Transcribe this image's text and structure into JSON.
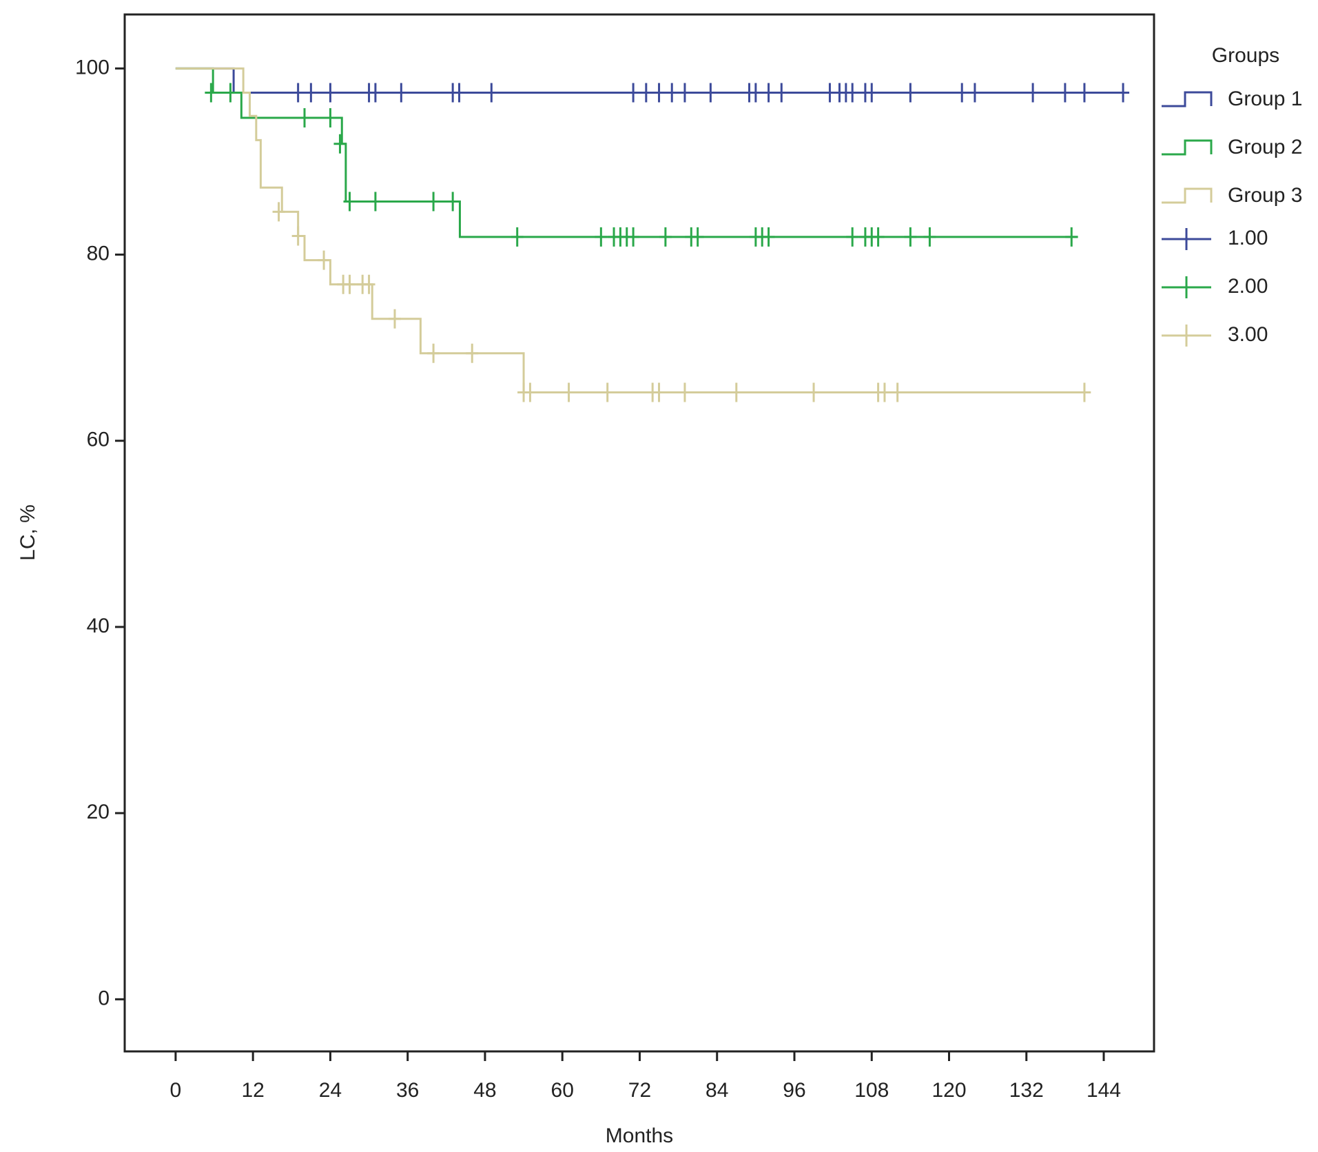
{
  "chart_data": {
    "type": "survival",
    "xlabel": "Months",
    "ylabel": "LC, %",
    "legend_title": "Groups",
    "legend": "right",
    "xlim": [
      -7.9,
      151.8
    ],
    "ylim": [
      -5.6,
      105.8
    ],
    "xticks": [
      0,
      12,
      24,
      36,
      48,
      60,
      72,
      84,
      96,
      108,
      120,
      132,
      144
    ],
    "yticks": [
      0,
      20,
      40,
      60,
      80,
      100
    ],
    "series": [
      {
        "name": "Group 1",
        "color": "#3c4a9a",
        "style": "step",
        "x": [
          0,
          9,
          147.2
        ],
        "values": [
          100,
          97.4,
          97.4
        ]
      },
      {
        "name": "Group 2",
        "color": "#2aa84a",
        "style": "step",
        "x": [
          0,
          5.8,
          10.2,
          25.8,
          26.4,
          44.1,
          140
        ],
        "values": [
          100,
          97.4,
          94.7,
          91.9,
          85.7,
          81.9,
          81.9
        ]
      },
      {
        "name": "Group 3",
        "color": "#d4cc9a",
        "style": "step",
        "x": [
          0,
          10.5,
          11.5,
          12.5,
          13.2,
          16.5,
          19,
          20,
          24,
          30.5,
          38,
          54,
          142
        ],
        "values": [
          100,
          97.4,
          94.9,
          92.3,
          87.2,
          84.6,
          82.0,
          79.4,
          76.8,
          73.1,
          69.4,
          65.2,
          65.2
        ]
      },
      {
        "name": "1.00",
        "color": "#3c4a9a",
        "style": "censor",
        "x": [
          19,
          21,
          24,
          30,
          31,
          35,
          43,
          44,
          49,
          71,
          73,
          75,
          77,
          79,
          83,
          89,
          90,
          92,
          94,
          101.5,
          103,
          104,
          105,
          107,
          108,
          114,
          122,
          124,
          133,
          138,
          141,
          147
        ],
        "values": [
          97.4,
          97.4,
          97.4,
          97.4,
          97.4,
          97.4,
          97.4,
          97.4,
          97.4,
          97.4,
          97.4,
          97.4,
          97.4,
          97.4,
          97.4,
          97.4,
          97.4,
          97.4,
          97.4,
          97.4,
          97.4,
          97.4,
          97.4,
          97.4,
          97.4,
          97.4,
          97.4,
          97.4,
          97.4,
          97.4,
          97.4,
          97.4
        ]
      },
      {
        "name": "2.00",
        "color": "#2aa84a",
        "style": "censor",
        "x": [
          5.5,
          8.5,
          20,
          24,
          25.5,
          27,
          31,
          40,
          43,
          53,
          66,
          68,
          69,
          70,
          71,
          76,
          80,
          81,
          90,
          91,
          92,
          105,
          107,
          108,
          109,
          114,
          117,
          139
        ],
        "values": [
          97.4,
          97.4,
          94.7,
          94.7,
          91.9,
          85.7,
          85.7,
          85.7,
          85.7,
          81.9,
          81.9,
          81.9,
          81.9,
          81.9,
          81.9,
          81.9,
          81.9,
          81.9,
          81.9,
          81.9,
          81.9,
          81.9,
          81.9,
          81.9,
          81.9,
          81.9,
          81.9,
          81.9
        ]
      },
      {
        "name": "3.00",
        "color": "#d4cc9a",
        "style": "censor",
        "x": [
          16,
          19,
          23,
          26,
          27,
          29,
          30,
          34,
          40,
          46,
          54,
          55,
          61,
          67,
          74,
          75,
          79,
          87,
          99,
          109,
          110,
          112,
          141
        ],
        "values": [
          84.6,
          82.0,
          79.4,
          76.8,
          76.8,
          76.8,
          76.8,
          73.1,
          69.4,
          69.4,
          65.2,
          65.2,
          65.2,
          65.2,
          65.2,
          65.2,
          65.2,
          65.2,
          65.2,
          65.2,
          65.2,
          65.2,
          65.2
        ]
      }
    ]
  }
}
